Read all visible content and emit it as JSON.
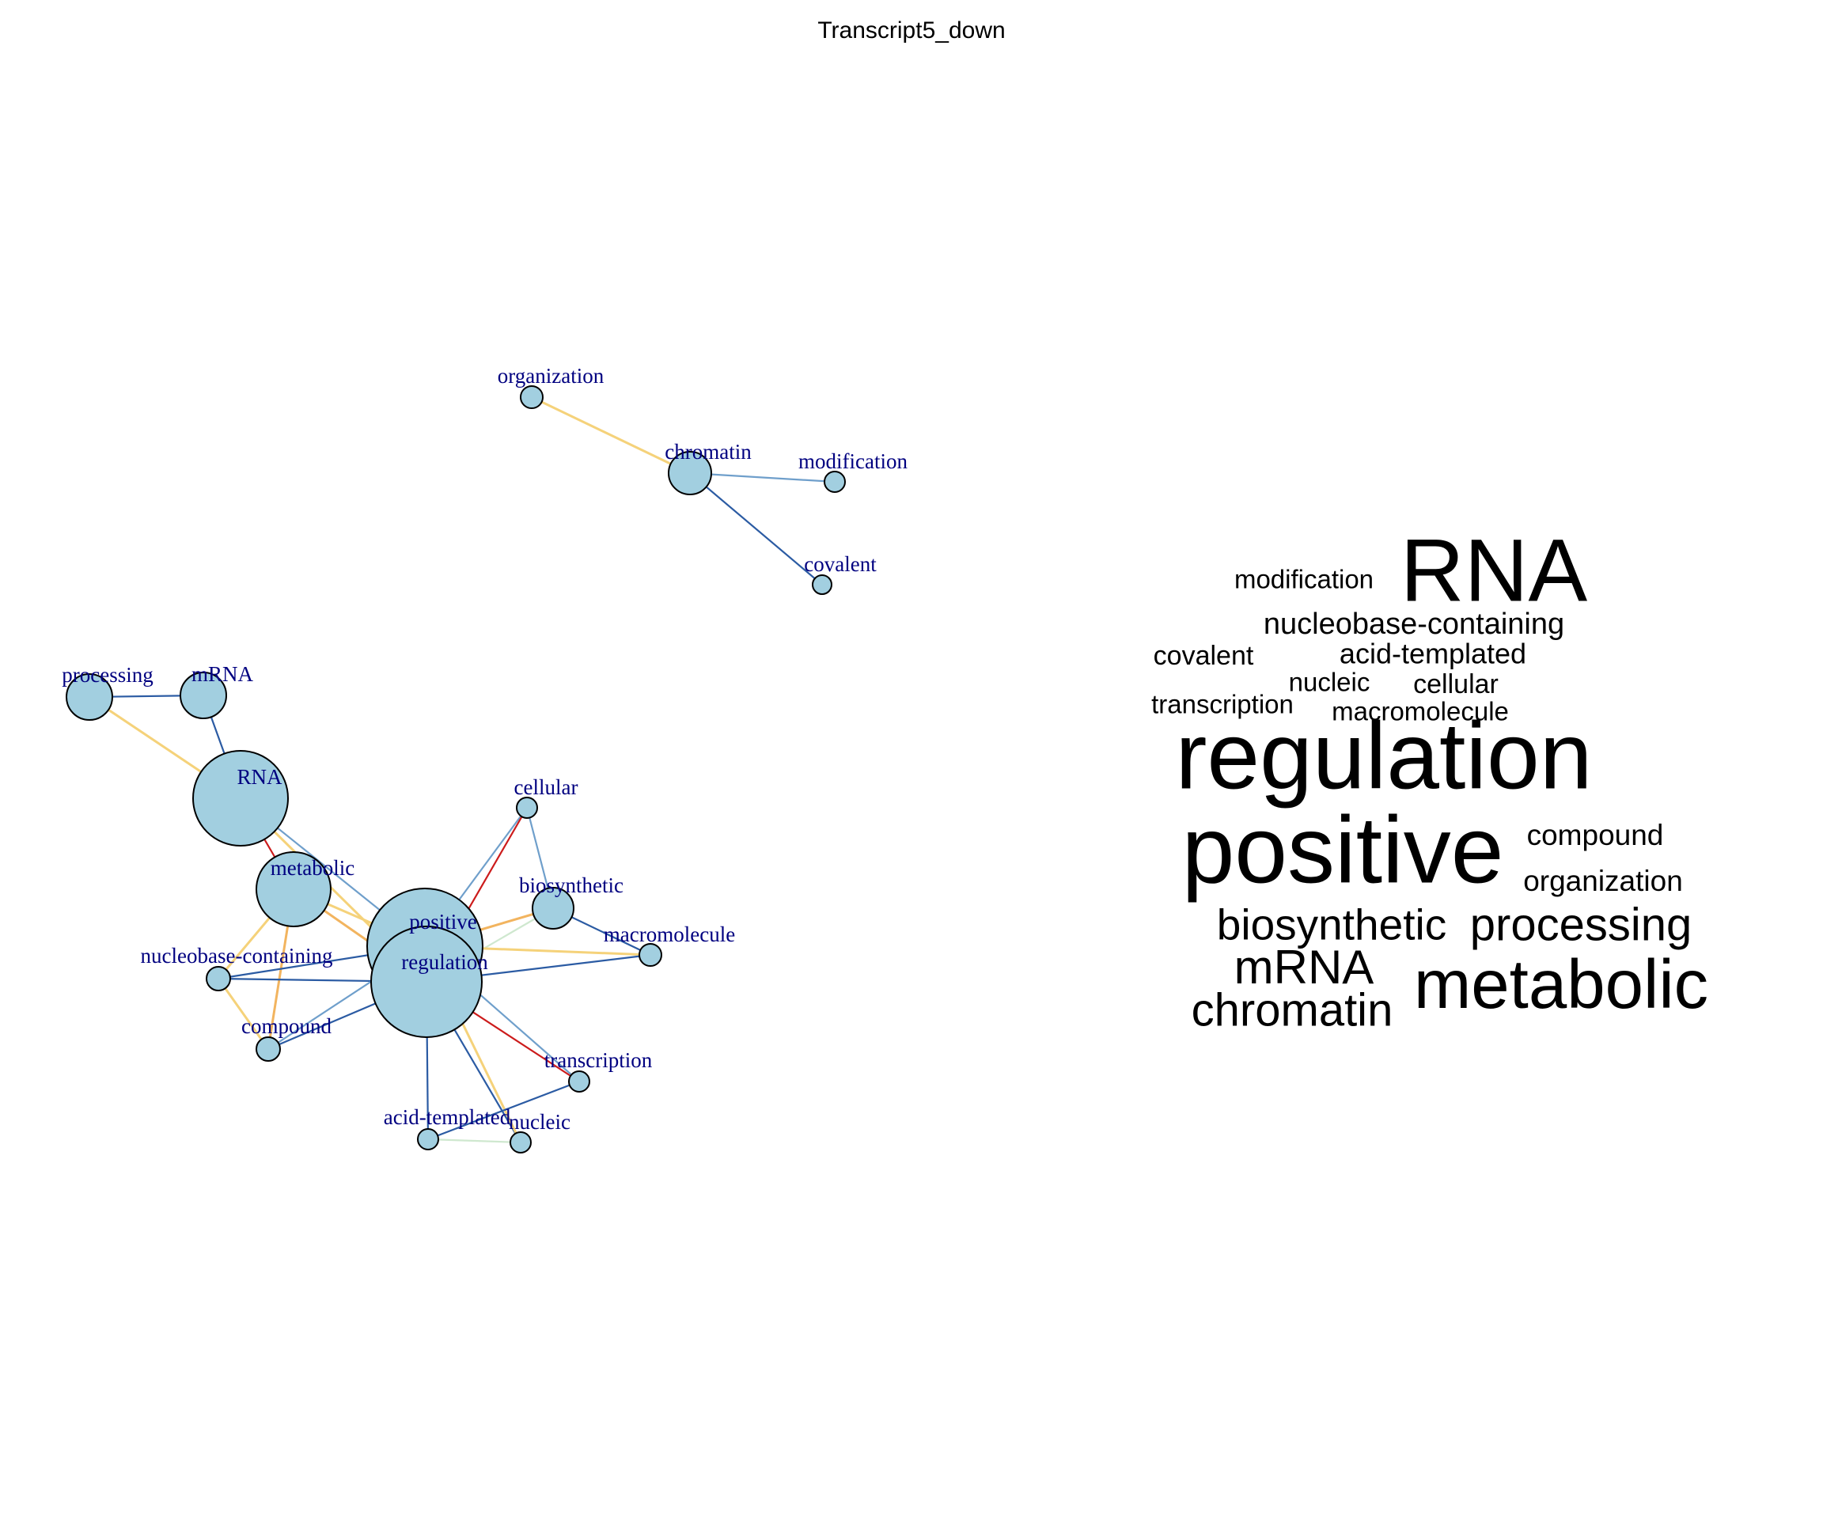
{
  "title": "Transcript5_down",
  "colors": {
    "node_fill": "#a2cfe0",
    "node_stroke": "#000000",
    "label": "#000080",
    "edge_blue": "#2b5ba3",
    "edge_lightblue": "#6f9fcb",
    "edge_yellow": "#f5d27a",
    "edge_orange": "#f2b45f",
    "edge_red": "#cc1b1b",
    "edge_green": "#cfe8cf"
  },
  "network": {
    "nodes": [
      {
        "id": "organization",
        "label": "organization"
      },
      {
        "id": "chromatin",
        "label": "chromatin"
      },
      {
        "id": "modification",
        "label": "modification"
      },
      {
        "id": "covalent",
        "label": "covalent"
      },
      {
        "id": "processing",
        "label": "processing"
      },
      {
        "id": "mRNA",
        "label": "mRNA"
      },
      {
        "id": "RNA",
        "label": "RNA"
      },
      {
        "id": "cellular",
        "label": "cellular"
      },
      {
        "id": "metabolic",
        "label": "metabolic"
      },
      {
        "id": "biosynthetic",
        "label": "biosynthetic"
      },
      {
        "id": "positive",
        "label": "positive"
      },
      {
        "id": "macromolecule",
        "label": "macromolecule"
      },
      {
        "id": "nucleobase-containing",
        "label": "nucleobase-containing"
      },
      {
        "id": "regulation",
        "label": "regulation"
      },
      {
        "id": "compound",
        "label": "compound"
      },
      {
        "id": "transcription",
        "label": "transcription"
      },
      {
        "id": "acid-templated",
        "label": "acid-templated"
      },
      {
        "id": "nucleic",
        "label": "nucleic"
      }
    ],
    "edges": [
      {
        "from": "organization",
        "to": "chromatin",
        "color": "edge_yellow"
      },
      {
        "from": "chromatin",
        "to": "modification",
        "color": "edge_lightblue"
      },
      {
        "from": "chromatin",
        "to": "covalent",
        "color": "edge_blue"
      },
      {
        "from": "processing",
        "to": "mRNA",
        "color": "edge_blue"
      },
      {
        "from": "processing",
        "to": "RNA",
        "color": "edge_yellow"
      },
      {
        "from": "mRNA",
        "to": "RNA",
        "color": "edge_blue"
      },
      {
        "from": "RNA",
        "to": "metabolic",
        "color": "edge_red"
      },
      {
        "from": "RNA",
        "to": "positive",
        "color": "edge_lightblue"
      },
      {
        "from": "RNA",
        "to": "regulation",
        "color": "edge_yellow"
      },
      {
        "from": "metabolic",
        "to": "positive",
        "color": "edge_yellow"
      },
      {
        "from": "metabolic",
        "to": "regulation",
        "color": "edge_orange"
      },
      {
        "from": "metabolic",
        "to": "compound",
        "color": "edge_orange"
      },
      {
        "from": "metabolic",
        "to": "nucleobase-containing",
        "color": "edge_yellow"
      },
      {
        "from": "cellular",
        "to": "positive",
        "color": "edge_lightblue"
      },
      {
        "from": "cellular",
        "to": "regulation",
        "color": "edge_red"
      },
      {
        "from": "cellular",
        "to": "biosynthetic",
        "color": "edge_lightblue"
      },
      {
        "from": "biosynthetic",
        "to": "positive",
        "color": "edge_orange"
      },
      {
        "from": "biosynthetic",
        "to": "regulation",
        "color": "edge_green"
      },
      {
        "from": "biosynthetic",
        "to": "macromolecule",
        "color": "edge_blue"
      },
      {
        "from": "positive",
        "to": "macromolecule",
        "color": "edge_yellow"
      },
      {
        "from": "regulation",
        "to": "macromolecule",
        "color": "edge_blue"
      },
      {
        "from": "nucleobase-containing",
        "to": "positive",
        "color": "edge_blue"
      },
      {
        "from": "nucleobase-containing",
        "to": "regulation",
        "color": "edge_blue"
      },
      {
        "from": "nucleobase-containing",
        "to": "compound",
        "color": "edge_yellow"
      },
      {
        "from": "compound",
        "to": "regulation",
        "color": "edge_blue"
      },
      {
        "from": "compound",
        "to": "positive",
        "color": "edge_lightblue"
      },
      {
        "from": "regulation",
        "to": "transcription",
        "color": "edge_red"
      },
      {
        "from": "positive",
        "to": "transcription",
        "color": "edge_lightblue"
      },
      {
        "from": "regulation",
        "to": "acid-templated",
        "color": "edge_blue"
      },
      {
        "from": "regulation",
        "to": "nucleic",
        "color": "edge_blue"
      },
      {
        "from": "positive",
        "to": "nucleic",
        "color": "edge_yellow"
      },
      {
        "from": "acid-templated",
        "to": "transcription",
        "color": "edge_blue"
      },
      {
        "from": "acid-templated",
        "to": "nucleic",
        "color": "edge_green"
      }
    ]
  },
  "wordcloud": [
    {
      "word": "RNA",
      "weight": 10
    },
    {
      "word": "modification",
      "weight": 3
    },
    {
      "word": "nucleobase-containing",
      "weight": 3.5
    },
    {
      "word": "covalent",
      "weight": 3
    },
    {
      "word": "acid-templated",
      "weight": 3
    },
    {
      "word": "nucleic",
      "weight": 3
    },
    {
      "word": "cellular",
      "weight": 3
    },
    {
      "word": "transcription",
      "weight": 3
    },
    {
      "word": "macromolecule",
      "weight": 3
    },
    {
      "word": "regulation",
      "weight": 11
    },
    {
      "word": "positive",
      "weight": 11
    },
    {
      "word": "compound",
      "weight": 3
    },
    {
      "word": "organization",
      "weight": 3
    },
    {
      "word": "biosynthetic",
      "weight": 5
    },
    {
      "word": "processing",
      "weight": 5.5
    },
    {
      "word": "mRNA",
      "weight": 6
    },
    {
      "word": "metabolic",
      "weight": 8
    },
    {
      "word": "chromatin",
      "weight": 5.5
    }
  ]
}
